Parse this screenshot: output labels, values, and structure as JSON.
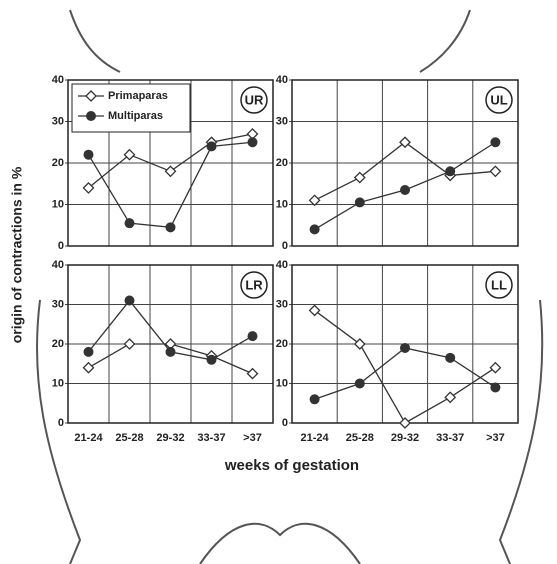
{
  "ylabel": "origin of contractions in %",
  "xlabel": "weeks of gestation",
  "chart_data": [
    {
      "type": "line",
      "title": "UR",
      "ylim": [
        0,
        40
      ],
      "yticks": [
        0,
        10,
        20,
        30,
        40
      ],
      "grid": true,
      "legend": "top-left",
      "series": [
        {
          "name": "Primaparas",
          "color": "#333333",
          "marker": "diamond",
          "values": [
            14,
            22,
            18,
            25,
            27
          ]
        },
        {
          "name": "Multiparas",
          "color": "#333333",
          "marker": "circle",
          "values": [
            22,
            5.5,
            4.5,
            24,
            25
          ]
        }
      ]
    },
    {
      "type": "line",
      "title": "UL",
      "ylim": [
        0,
        40
      ],
      "yticks": [
        0,
        10,
        20,
        30,
        40
      ],
      "grid": true,
      "series": [
        {
          "color": "#333333",
          "marker": "diamond",
          "values": [
            11,
            16.5,
            25,
            17,
            18
          ]
        },
        {
          "color": "#333333",
          "marker": "circle",
          "values": [
            4,
            10.5,
            13.5,
            18,
            25
          ]
        }
      ]
    },
    {
      "type": "line",
      "title": "LR",
      "ylim": [
        0,
        40
      ],
      "yticks": [
        0,
        10,
        20,
        30,
        40
      ],
      "grid": true,
      "categories": [
        "21-24",
        "25-28",
        "29-32",
        "33-37",
        ">37"
      ],
      "series": [
        {
          "color": "#333333",
          "marker": "diamond",
          "values": [
            14,
            20,
            20,
            17,
            12.5
          ]
        },
        {
          "color": "#333333",
          "marker": "circle",
          "values": [
            18,
            31,
            18,
            16,
            22
          ]
        }
      ]
    },
    {
      "type": "line",
      "title": "LL",
      "ylim": [
        0,
        40
      ],
      "yticks": [
        0,
        10,
        20,
        30,
        40
      ],
      "grid": true,
      "categories": [
        "21-24",
        "25-28",
        "29-32",
        "33-37",
        ">37"
      ],
      "series": [
        {
          "color": "#333333",
          "marker": "diamond",
          "values": [
            28.5,
            20,
            0,
            6.5,
            14
          ]
        },
        {
          "color": "#333333",
          "marker": "circle",
          "values": [
            6,
            10,
            19,
            16.5,
            9
          ]
        }
      ]
    }
  ]
}
